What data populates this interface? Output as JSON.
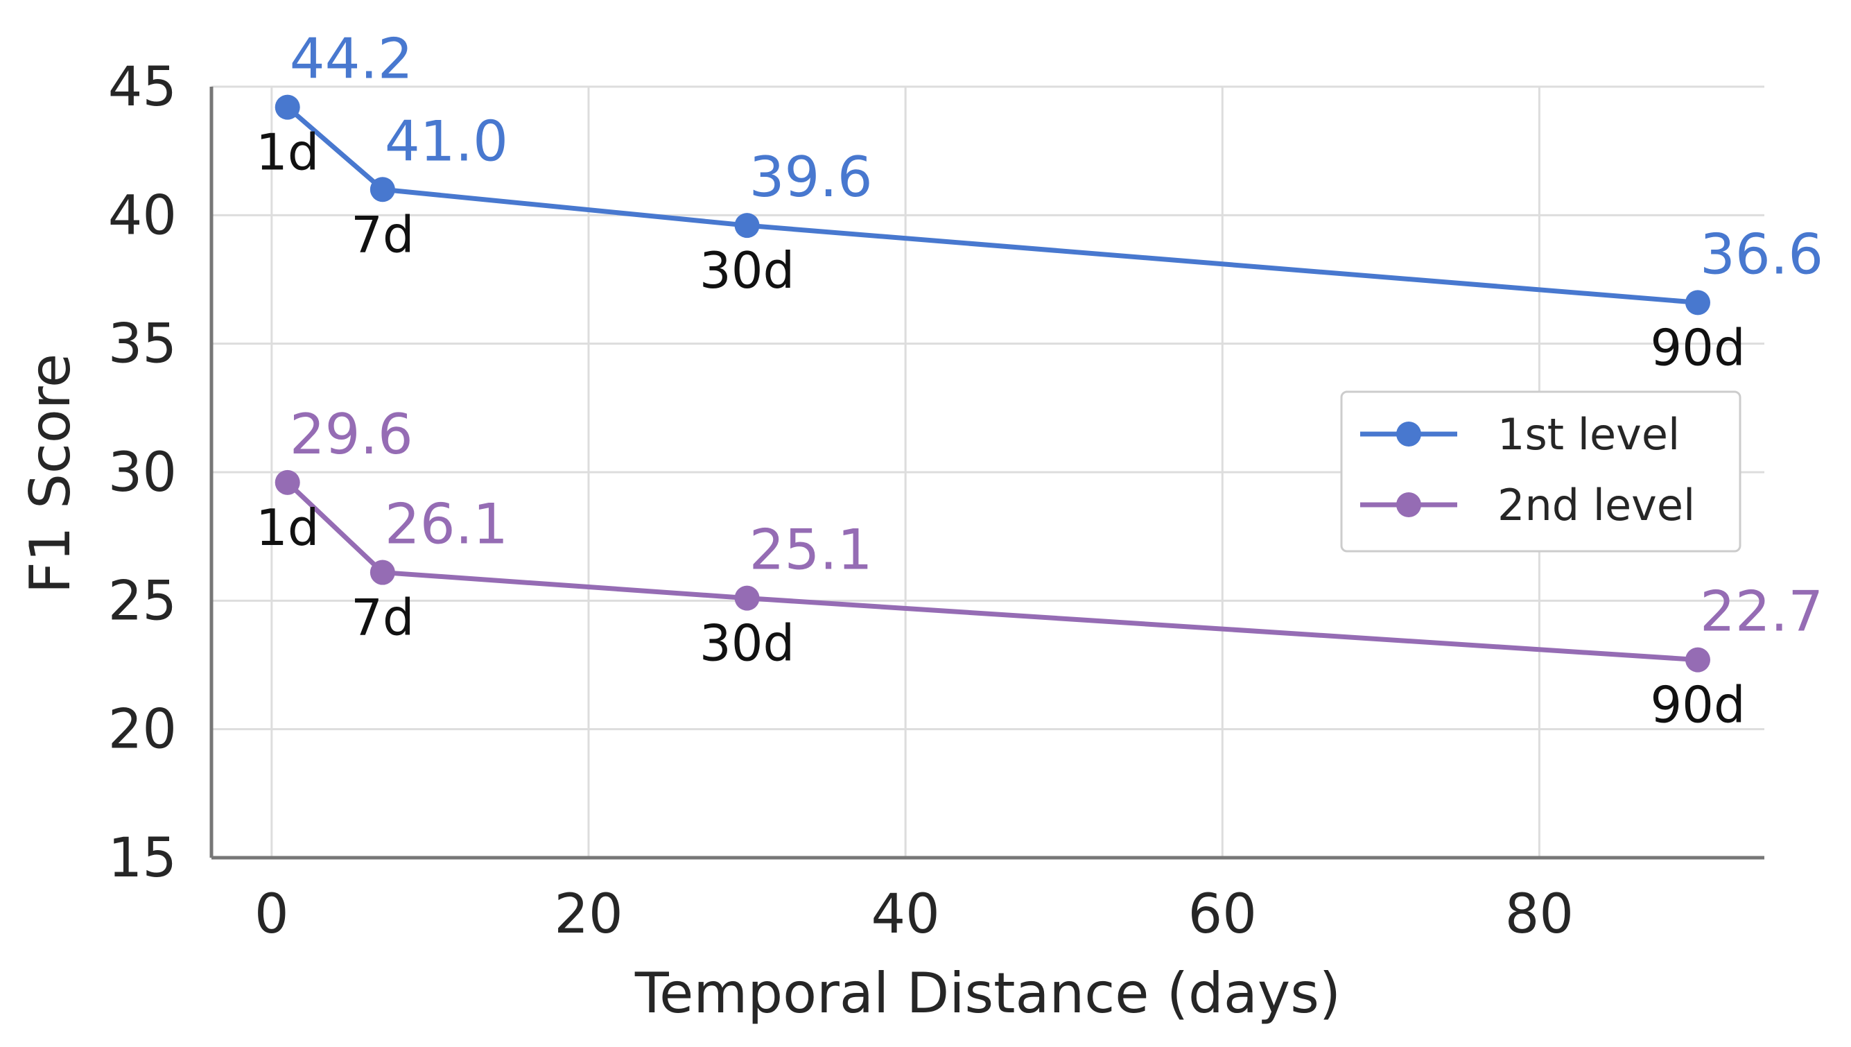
{
  "chart_data": {
    "type": "line",
    "xlabel": "Temporal Distance (days)",
    "ylabel": "F1 Score",
    "xlim": [
      -3.8,
      94.2
    ],
    "ylim": [
      15,
      45
    ],
    "xticks": [
      0,
      20,
      40,
      60,
      80
    ],
    "yticks": [
      15,
      20,
      25,
      30,
      35,
      40,
      45
    ],
    "grid": true,
    "legend_position": "center-right",
    "x": [
      1,
      7,
      30,
      90
    ],
    "point_labels": [
      "1d",
      "7d",
      "30d",
      "90d"
    ],
    "series": [
      {
        "name": "1st level",
        "color": "#4878CF",
        "values": [
          44.2,
          41.0,
          39.6,
          36.6
        ],
        "data_labels": [
          "44.2",
          "41.0",
          "39.6",
          "36.6"
        ]
      },
      {
        "name": "2nd level",
        "color": "#956CB4",
        "values": [
          29.6,
          26.1,
          25.1,
          22.7
        ],
        "data_labels": [
          "29.6",
          "26.1",
          "25.1",
          "22.7"
        ]
      }
    ]
  }
}
